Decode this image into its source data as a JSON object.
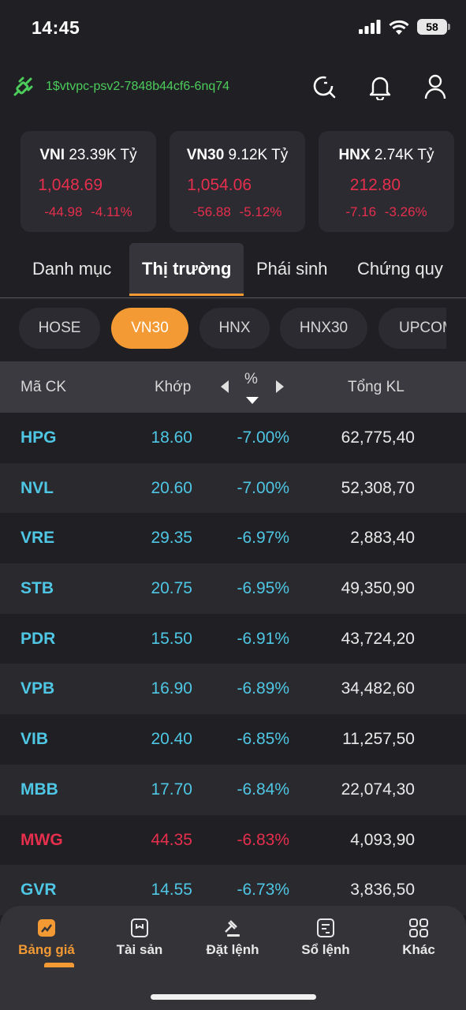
{
  "status": {
    "time": "14:45",
    "battery": "58"
  },
  "account": {
    "id": "1$vtvpc-psv2-7848b44cf6-6nq74"
  },
  "indices": [
    {
      "code": "VNI",
      "value": "23.39K Tỷ",
      "price": "1,048.69",
      "change": "-44.98",
      "pct": "-4.11%"
    },
    {
      "code": "VN30",
      "value": "9.12K Tỷ",
      "price": "1,054.06",
      "change": "-56.88",
      "pct": "-5.12%"
    },
    {
      "code": "HNX",
      "value": "2.74K Tỷ",
      "price": "212.80",
      "change": "-7.16",
      "pct": "-3.26%"
    }
  ],
  "tabs": [
    "Danh mục",
    "Thị trường",
    "Phái sinh",
    "Chứng quy"
  ],
  "pills": [
    "HOSE",
    "VN30",
    "HNX",
    "HNX30",
    "UPCOM"
  ],
  "table": {
    "headers": {
      "symbol": "Mã CK",
      "price": "Khớp",
      "pct": "%",
      "volume": "Tổng KL"
    },
    "rows": [
      {
        "symbol": "HPG",
        "price": "18.60",
        "pct": "-7.00%",
        "volume": "62,775,40",
        "color": "#4fc6e4"
      },
      {
        "symbol": "NVL",
        "price": "20.60",
        "pct": "-7.00%",
        "volume": "52,308,70",
        "color": "#4fc6e4"
      },
      {
        "symbol": "VRE",
        "price": "29.35",
        "pct": "-6.97%",
        "volume": "2,883,40",
        "color": "#4fc6e4"
      },
      {
        "symbol": "STB",
        "price": "20.75",
        "pct": "-6.95%",
        "volume": "49,350,90",
        "color": "#4fc6e4"
      },
      {
        "symbol": "PDR",
        "price": "15.50",
        "pct": "-6.91%",
        "volume": "43,724,20",
        "color": "#4fc6e4"
      },
      {
        "symbol": "VPB",
        "price": "16.90",
        "pct": "-6.89%",
        "volume": "34,482,60",
        "color": "#4fc6e4"
      },
      {
        "symbol": "VIB",
        "price": "20.40",
        "pct": "-6.85%",
        "volume": "11,257,50",
        "color": "#4fc6e4"
      },
      {
        "symbol": "MBB",
        "price": "17.70",
        "pct": "-6.84%",
        "volume": "22,074,30",
        "color": "#4fc6e4"
      },
      {
        "symbol": "MWG",
        "price": "44.35",
        "pct": "-6.83%",
        "volume": "4,093,90",
        "color": "#e62e4d"
      },
      {
        "symbol": "GVR",
        "price": "14.55",
        "pct": "-6.73%",
        "volume": "3,836,50",
        "color": "#4fc6e4"
      }
    ]
  },
  "nav": [
    "Bảng giá",
    "Tài sản",
    "Đặt lệnh",
    "Sổ lệnh",
    "Khác"
  ],
  "colors": {
    "accent": "#f39a34",
    "down": "#e62e4d",
    "floor": "#4fc6e4",
    "connected": "#4ccc5b"
  }
}
